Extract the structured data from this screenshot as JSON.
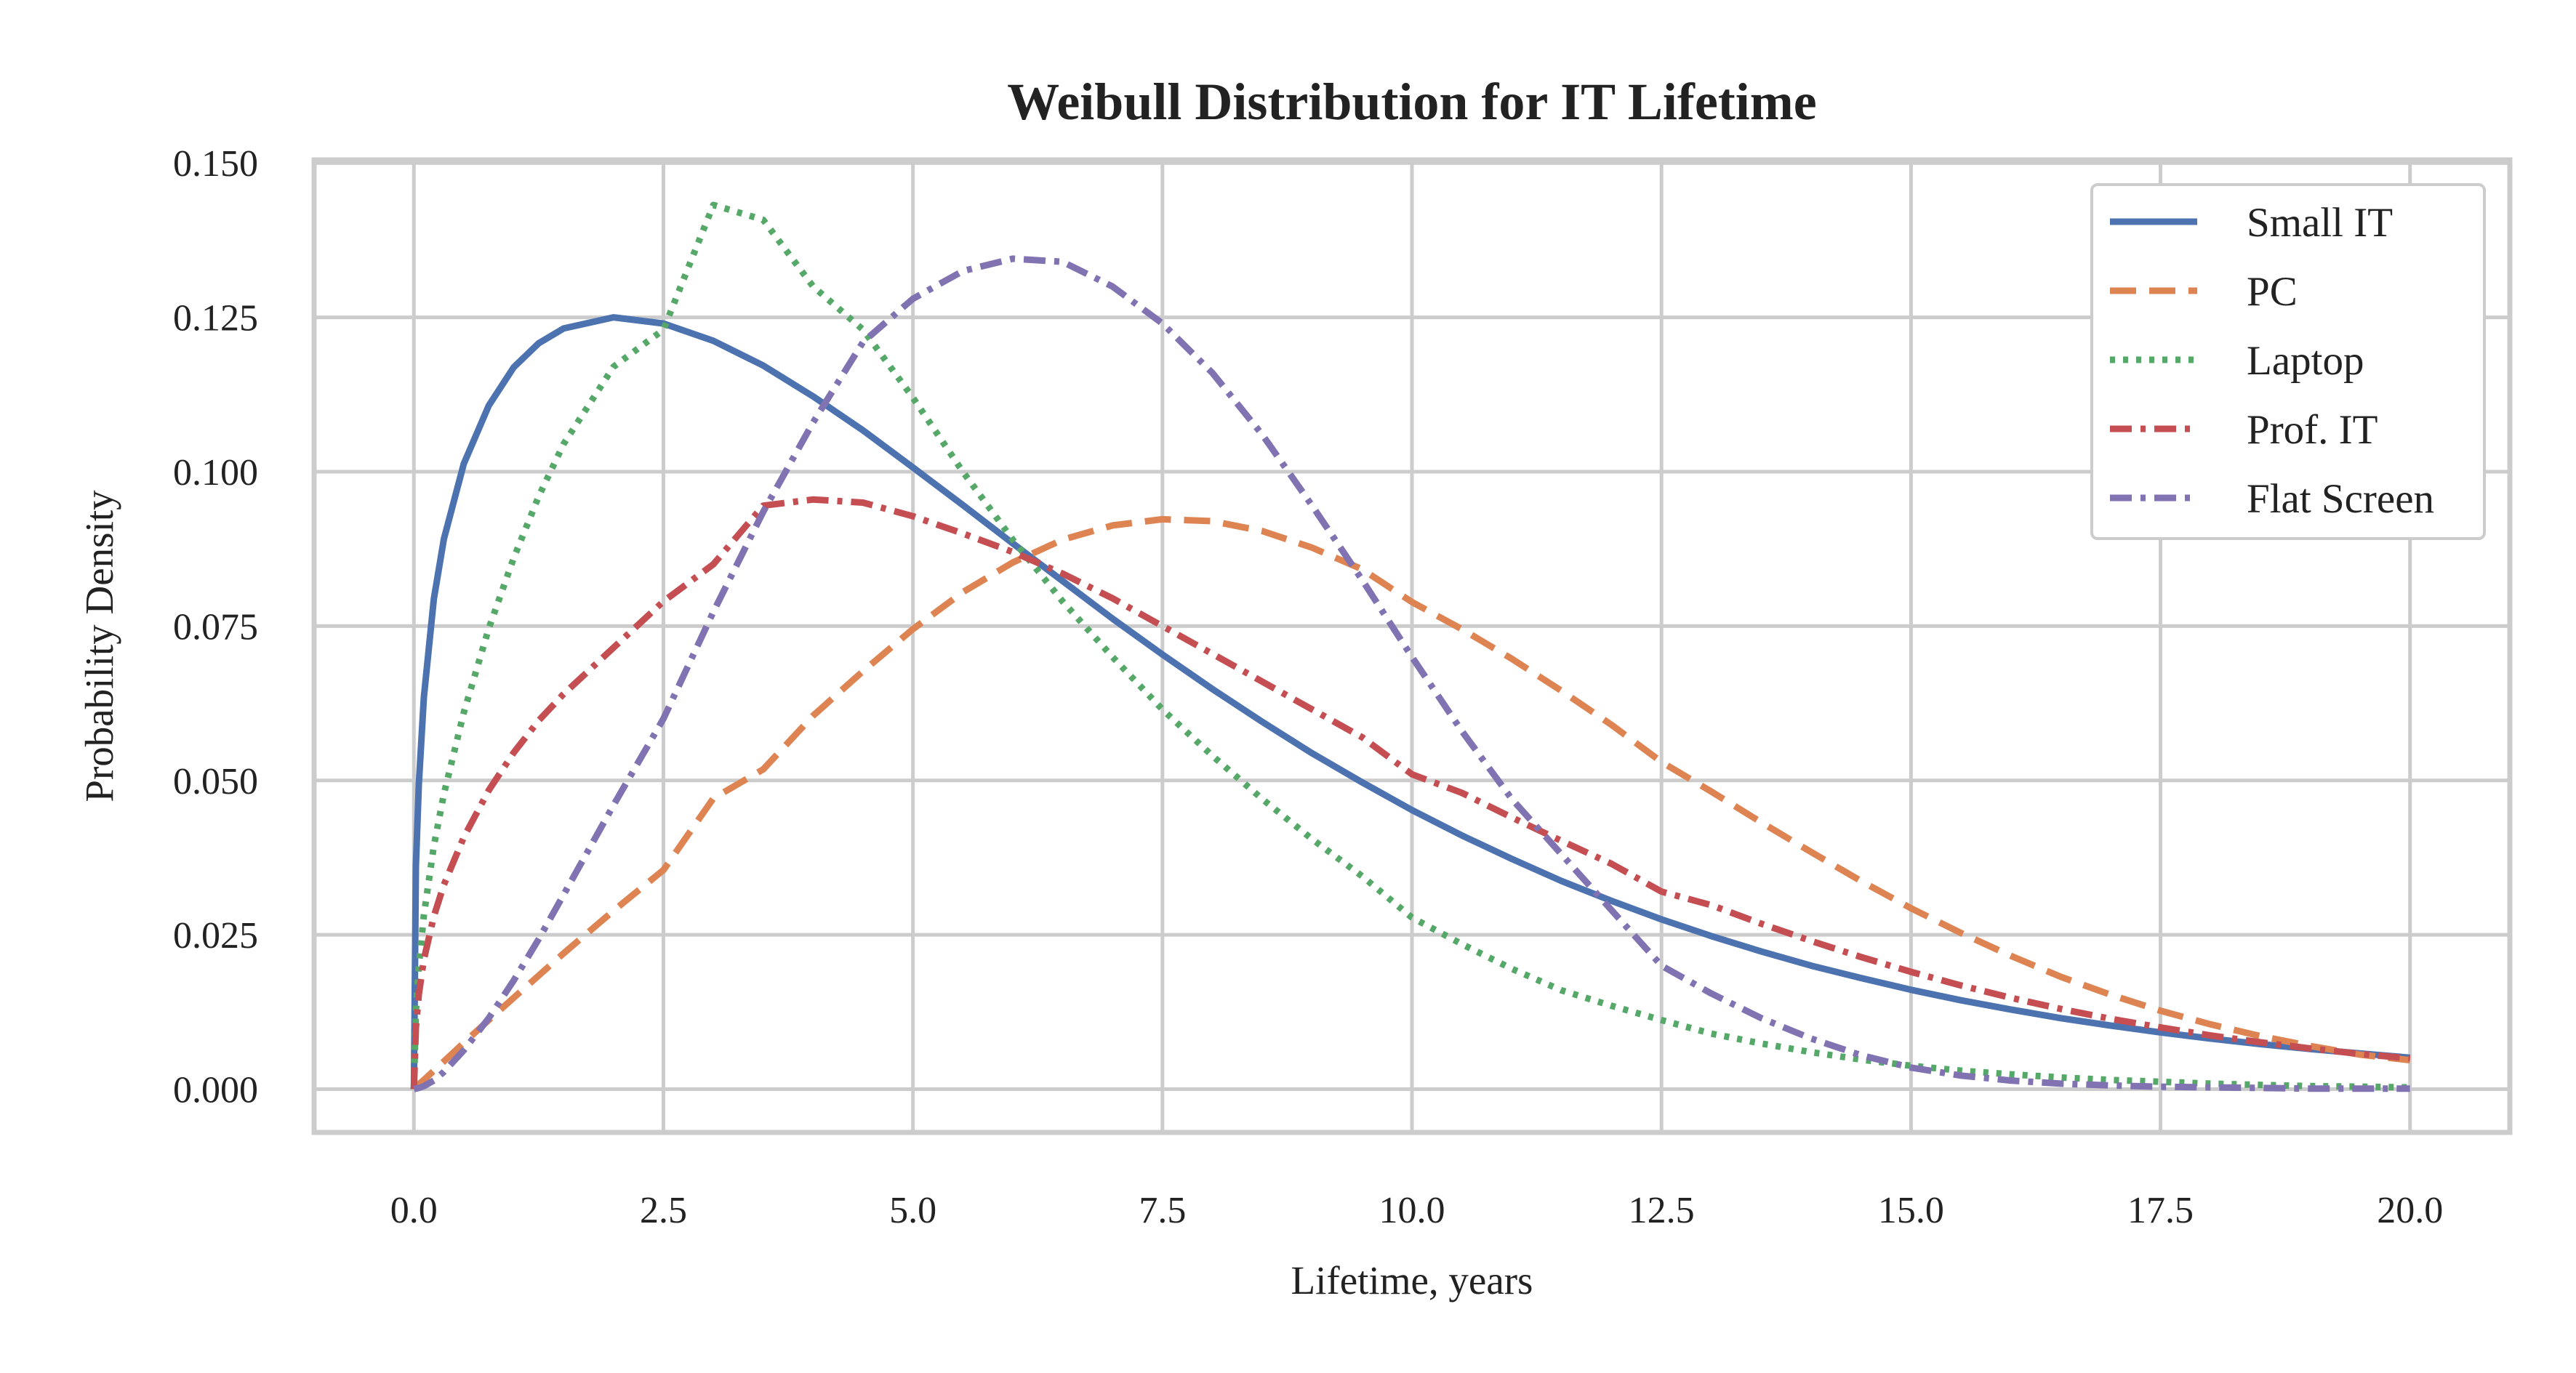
{
  "chart_data": {
    "type": "line",
    "title": "Weibull Distribution for IT Lifetime",
    "xlabel": "Lifetime, years",
    "ylabel": "Probability Density",
    "xlim": [
      -1,
      21
    ],
    "ylim": [
      -0.007,
      0.1505
    ],
    "grid": true,
    "legend_position": "top-right",
    "xticks": [
      0.0,
      2.5,
      5.0,
      7.5,
      10.0,
      12.5,
      15.0,
      17.5,
      20.0
    ],
    "xtick_labels": [
      "0.0",
      "2.5",
      "5.0",
      "7.5",
      "10.0",
      "12.5",
      "15.0",
      "17.5",
      "20.0"
    ],
    "yticks": [
      0.0,
      0.025,
      0.05,
      0.075,
      0.1,
      0.125,
      0.15
    ],
    "ytick_labels": [
      "0.000",
      "0.025",
      "0.050",
      "0.075",
      "0.100",
      "0.125",
      "0.150"
    ],
    "x": [
      0,
      0.02,
      0.05,
      0.1,
      0.2,
      0.3,
      0.5,
      0.75,
      1,
      1.25,
      1.5,
      2,
      2.5,
      3,
      3.5,
      4,
      4.5,
      5,
      5.5,
      6,
      6.5,
      7,
      7.5,
      8,
      8.5,
      9,
      9.5,
      10,
      10.5,
      11,
      11.5,
      12,
      12.5,
      13,
      13.5,
      14,
      14.5,
      15,
      15.5,
      16,
      16.5,
      17,
      17.5,
      18,
      18.5,
      19,
      19.5,
      20
    ],
    "series": [
      {
        "name": "Small IT",
        "color": "#4C72B0",
        "dash": "solid",
        "values": [
          0.0,
          0.0361,
          0.0495,
          0.0635,
          0.0794,
          0.0891,
          0.1013,
          0.1107,
          0.1169,
          0.1208,
          0.1232,
          0.125,
          0.124,
          0.1212,
          0.1172,
          0.1122,
          0.1067,
          0.1007,
          0.0946,
          0.0884,
          0.0823,
          0.0762,
          0.0704,
          0.0648,
          0.0595,
          0.0544,
          0.0497,
          0.0452,
          0.0411,
          0.0373,
          0.0337,
          0.0305,
          0.0275,
          0.0248,
          0.0223,
          0.02,
          0.018,
          0.0161,
          0.0144,
          0.0129,
          0.0115,
          0.0103,
          0.0092,
          0.0082,
          0.0073,
          0.0065,
          0.0058,
          0.0051
        ]
      },
      {
        "name": "PC",
        "color": "#DD8452",
        "dash": "dashed",
        "values": [
          0.0,
          0.0003,
          0.0008,
          0.0015,
          0.003,
          0.0045,
          0.0075,
          0.0112,
          0.0148,
          0.0184,
          0.022,
          0.0289,
          0.0355,
          0.0471,
          0.0518,
          0.0605,
          0.0677,
          0.0745,
          0.0805,
          0.0853,
          0.089,
          0.0913,
          0.0923,
          0.092,
          0.0904,
          0.0877,
          0.0842,
          0.0789,
          0.0745,
          0.0697,
          0.0645,
          0.059,
          0.053,
          0.0482,
          0.0432,
          0.0384,
          0.0337,
          0.0293,
          0.0253,
          0.0216,
          0.0182,
          0.0153,
          0.0127,
          0.0105,
          0.0086,
          0.007,
          0.0056,
          0.0047
        ]
      },
      {
        "name": "Laptop",
        "color": "#55A868",
        "dash": "dotted",
        "values": [
          0.0,
          0.0126,
          0.02,
          0.0282,
          0.0394,
          0.0478,
          0.061,
          0.0746,
          0.086,
          0.096,
          0.1045,
          0.117,
          0.123,
          0.1432,
          0.1408,
          0.13,
          0.123,
          0.112,
          0.1,
          0.089,
          0.079,
          0.07,
          0.0615,
          0.054,
          0.047,
          0.0405,
          0.0345,
          0.0278,
          0.0235,
          0.0195,
          0.016,
          0.0135,
          0.0112,
          0.009,
          0.0074,
          0.006,
          0.0048,
          0.0038,
          0.003,
          0.0024,
          0.0019,
          0.0015,
          0.0012,
          0.0009,
          0.0007,
          0.0005,
          0.0004,
          0.0003
        ]
      },
      {
        "name": "Prof. IT",
        "color": "#C44E52",
        "dash": "dashdot",
        "values": [
          0.0,
          0.01,
          0.0154,
          0.021,
          0.028,
          0.0331,
          0.0408,
          0.0484,
          0.0545,
          0.0597,
          0.064,
          0.0715,
          0.079,
          0.085,
          0.0945,
          0.0955,
          0.095,
          0.0928,
          0.09,
          0.087,
          0.0835,
          0.0795,
          0.075,
          0.0705,
          0.066,
          0.0615,
          0.057,
          0.051,
          0.048,
          0.044,
          0.0402,
          0.0365,
          0.032,
          0.0298,
          0.0268,
          0.024,
          0.0214,
          0.019,
          0.0168,
          0.0148,
          0.013,
          0.0114,
          0.01,
          0.0087,
          0.0076,
          0.0066,
          0.0057,
          0.005
        ]
      },
      {
        "name": "Flat Screen",
        "color": "#8172B2",
        "dash": "dashdot",
        "values": [
          0.0,
          0.0001,
          0.0002,
          0.0005,
          0.0014,
          0.0028,
          0.0063,
          0.0115,
          0.0176,
          0.0243,
          0.0315,
          0.046,
          0.06,
          0.0773,
          0.0935,
          0.108,
          0.121,
          0.128,
          0.1325,
          0.1345,
          0.134,
          0.13,
          0.124,
          0.116,
          0.106,
          0.0945,
          0.0825,
          0.07,
          0.058,
          0.047,
          0.038,
          0.029,
          0.02,
          0.0155,
          0.0115,
          0.0082,
          0.0055,
          0.0035,
          0.0022,
          0.0014,
          0.0009,
          0.0006,
          0.0004,
          0.0003,
          0.0002,
          0.0001,
          0.0001,
          0.0001
        ]
      }
    ]
  }
}
